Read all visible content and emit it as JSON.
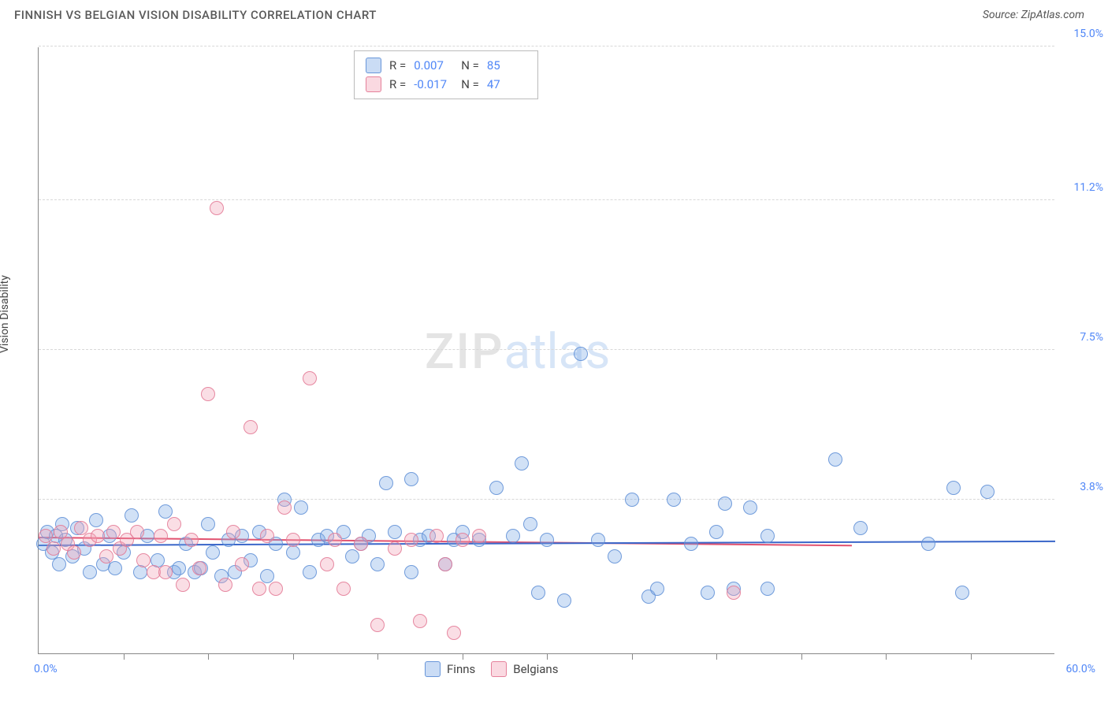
{
  "header": {
    "title": "FINNISH VS BELGIAN VISION DISABILITY CORRELATION CHART",
    "source": "Source: ZipAtlas.com"
  },
  "chart": {
    "type": "scatter",
    "y_axis_label": "Vision Disability",
    "xlim": [
      0,
      60
    ],
    "ylim": [
      0,
      15
    ],
    "x_tick_positions": [
      5,
      10,
      15,
      20,
      25,
      30,
      35,
      40,
      45,
      50,
      55
    ],
    "y_gridlines": [
      3.8,
      7.5,
      11.2,
      15.0
    ],
    "x_range_labels": {
      "min": "0.0%",
      "max": "60.0%"
    },
    "y_tick_labels": [
      "3.8%",
      "7.5%",
      "11.2%",
      "15.0%"
    ],
    "marker_radius": 9,
    "background_color": "#ffffff",
    "grid_color": "#d8d8d8",
    "axis_color": "#888888",
    "label_color": "#444444",
    "tick_label_color": "#4f86f7",
    "label_fontsize": 14,
    "series": {
      "finns": {
        "label": "Finns",
        "fill_color": "rgba(123,168,229,0.35)",
        "stroke_color": "rgba(95,143,214,0.85)",
        "trend_color": "#3a66c9",
        "trend": {
          "y_start": 2.65,
          "y_end": 2.75,
          "x_start": 0,
          "x_end": 60
        },
        "points": [
          [
            0.3,
            2.7
          ],
          [
            0.5,
            3.0
          ],
          [
            0.8,
            2.5
          ],
          [
            1.0,
            2.9
          ],
          [
            1.2,
            2.2
          ],
          [
            1.4,
            3.2
          ],
          [
            1.6,
            2.8
          ],
          [
            2.0,
            2.4
          ],
          [
            2.3,
            3.1
          ],
          [
            2.7,
            2.6
          ],
          [
            3.0,
            2.0
          ],
          [
            3.4,
            3.3
          ],
          [
            3.8,
            2.2
          ],
          [
            4.2,
            2.9
          ],
          [
            4.5,
            2.1
          ],
          [
            5.0,
            2.5
          ],
          [
            5.5,
            3.4
          ],
          [
            6.0,
            2.0
          ],
          [
            6.4,
            2.9
          ],
          [
            7.0,
            2.3
          ],
          [
            7.5,
            3.5
          ],
          [
            8.0,
            2.0
          ],
          [
            8.3,
            2.1
          ],
          [
            8.7,
            2.7
          ],
          [
            9.2,
            2.0
          ],
          [
            9.6,
            2.1
          ],
          [
            10.0,
            3.2
          ],
          [
            10.3,
            2.5
          ],
          [
            10.8,
            1.9
          ],
          [
            11.2,
            2.8
          ],
          [
            11.6,
            2.0
          ],
          [
            12.0,
            2.9
          ],
          [
            12.5,
            2.3
          ],
          [
            13.0,
            3.0
          ],
          [
            13.5,
            1.9
          ],
          [
            14.0,
            2.7
          ],
          [
            14.5,
            3.8
          ],
          [
            15.0,
            2.5
          ],
          [
            15.5,
            3.6
          ],
          [
            16.0,
            2.0
          ],
          [
            16.5,
            2.8
          ],
          [
            17.0,
            2.9
          ],
          [
            18.0,
            3.0
          ],
          [
            18.5,
            2.4
          ],
          [
            19.0,
            2.7
          ],
          [
            19.5,
            2.9
          ],
          [
            20.0,
            2.2
          ],
          [
            20.5,
            4.2
          ],
          [
            21.0,
            3.0
          ],
          [
            22.0,
            2.0
          ],
          [
            22.5,
            2.8
          ],
          [
            23.0,
            2.9
          ],
          [
            24.0,
            2.2
          ],
          [
            24.5,
            2.8
          ],
          [
            25.0,
            3.0
          ],
          [
            26.0,
            2.8
          ],
          [
            27.0,
            4.1
          ],
          [
            28.0,
            2.9
          ],
          [
            28.5,
            4.7
          ],
          [
            29.0,
            3.2
          ],
          [
            29.5,
            1.5
          ],
          [
            30.0,
            2.8
          ],
          [
            31.0,
            1.3
          ],
          [
            32.0,
            7.4
          ],
          [
            33.0,
            2.8
          ],
          [
            34.0,
            2.4
          ],
          [
            35.0,
            3.8
          ],
          [
            36.0,
            1.4
          ],
          [
            36.5,
            1.6
          ],
          [
            37.5,
            3.8
          ],
          [
            38.5,
            2.7
          ],
          [
            39.5,
            1.5
          ],
          [
            40.0,
            3.0
          ],
          [
            41.0,
            1.6
          ],
          [
            42.0,
            3.6
          ],
          [
            43.0,
            1.6
          ],
          [
            43.0,
            2.9
          ],
          [
            47.0,
            4.8
          ],
          [
            48.5,
            3.1
          ],
          [
            52.5,
            2.7
          ],
          [
            54.0,
            4.1
          ],
          [
            54.5,
            1.5
          ],
          [
            56.0,
            4.0
          ],
          [
            40.5,
            3.7
          ],
          [
            22.0,
            4.3
          ]
        ]
      },
      "belgians": {
        "label": "Belgians",
        "fill_color": "rgba(242,160,180,0.35)",
        "stroke_color": "rgba(227,120,148,0.85)",
        "trend_color": "#e2526f",
        "trend": {
          "y_start": 2.85,
          "y_end": 2.65,
          "x_start": 0,
          "x_end": 48
        },
        "points": [
          [
            0.4,
            2.9
          ],
          [
            0.9,
            2.6
          ],
          [
            1.3,
            3.0
          ],
          [
            1.7,
            2.7
          ],
          [
            2.1,
            2.5
          ],
          [
            2.5,
            3.1
          ],
          [
            3.0,
            2.8
          ],
          [
            3.5,
            2.9
          ],
          [
            4.0,
            2.4
          ],
          [
            4.4,
            3.0
          ],
          [
            4.8,
            2.6
          ],
          [
            5.2,
            2.8
          ],
          [
            5.8,
            3.0
          ],
          [
            6.2,
            2.3
          ],
          [
            6.8,
            2.0
          ],
          [
            7.2,
            2.9
          ],
          [
            7.5,
            2.0
          ],
          [
            8.0,
            3.2
          ],
          [
            8.5,
            1.7
          ],
          [
            9.0,
            2.8
          ],
          [
            9.5,
            2.1
          ],
          [
            10.0,
            6.4
          ],
          [
            10.5,
            11.0
          ],
          [
            11.0,
            1.7
          ],
          [
            11.5,
            3.0
          ],
          [
            12.0,
            2.2
          ],
          [
            12.5,
            5.6
          ],
          [
            13.0,
            1.6
          ],
          [
            13.5,
            2.9
          ],
          [
            14.0,
            1.6
          ],
          [
            14.5,
            3.6
          ],
          [
            15.0,
            2.8
          ],
          [
            16.0,
            6.8
          ],
          [
            17.0,
            2.2
          ],
          [
            17.5,
            2.8
          ],
          [
            18.0,
            1.6
          ],
          [
            19.0,
            2.7
          ],
          [
            20.0,
            0.7
          ],
          [
            21.0,
            2.6
          ],
          [
            22.0,
            2.8
          ],
          [
            22.5,
            0.8
          ],
          [
            23.5,
            2.9
          ],
          [
            24.0,
            2.2
          ],
          [
            25.0,
            2.8
          ],
          [
            26.0,
            2.9
          ],
          [
            41.0,
            1.5
          ],
          [
            24.5,
            0.5
          ]
        ]
      }
    },
    "stats_box": {
      "rows": [
        {
          "series": "finns",
          "r_label": "R =",
          "r_val": "0.007",
          "n_label": "N =",
          "n_val": "85"
        },
        {
          "series": "belgians",
          "r_label": "R =",
          "r_val": "-0.017",
          "n_label": "N =",
          "n_val": "47"
        }
      ]
    },
    "bottom_legend": [
      {
        "series": "finns",
        "label": "Finns"
      },
      {
        "series": "belgians",
        "label": "Belgians"
      }
    ],
    "watermark": {
      "part1": "ZIP",
      "part2": "atlas"
    }
  }
}
